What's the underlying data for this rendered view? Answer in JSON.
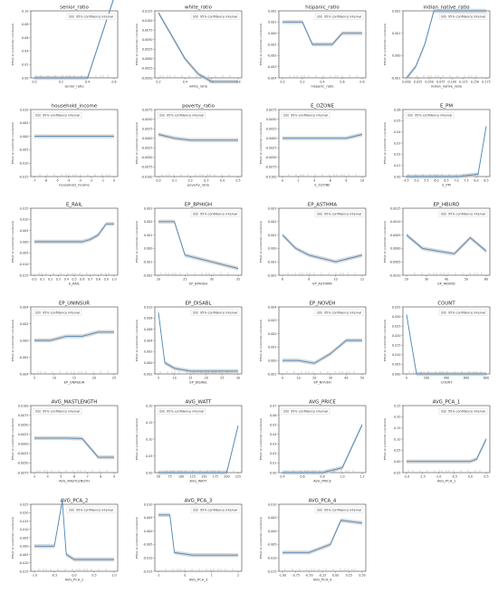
{
  "figure": {
    "legend_label": "95% confidence interval",
    "y_axis_label": "Effect on prediction (centered)"
  },
  "chart_data": [
    {
      "type": "line",
      "title": "senior_ratio",
      "xlabel": "senior_ratio",
      "x": [
        0.0,
        0.2,
        0.4,
        0.6
      ],
      "y": [
        0.0,
        0.0,
        0.0,
        0.12
      ],
      "xticks": [
        "0.0",
        "0.2",
        "0.4",
        "0.6"
      ],
      "yticks": [
        "0.00",
        "0.02",
        "0.04",
        "0.06",
        "0.08",
        "0.10"
      ],
      "legend": "top-right"
    },
    {
      "type": "line",
      "title": "white_ratio",
      "xlabel": "white_ratio",
      "x": [
        0.2,
        0.3,
        0.4,
        0.5,
        0.6,
        0.8
      ],
      "y": [
        0.012,
        0.006,
        0.0,
        -0.004,
        -0.006,
        -0.006
      ],
      "xticks": [
        "0.2",
        "0.4",
        "0.6",
        "0.8"
      ],
      "yticks": [
        "-0.0050",
        "-0.0025",
        "0.0000",
        "0.0025",
        "0.0050",
        "0.0075",
        "0.0100",
        "0.0125"
      ],
      "legend": "top-right"
    },
    {
      "type": "line",
      "title": "hispanic_ratio",
      "xlabel": "hispanic_ratio",
      "x": [
        0.0,
        0.2,
        0.3,
        0.5,
        0.6,
        0.8
      ],
      "y": [
        0.001,
        0.001,
        -0.001,
        -0.001,
        0.0,
        0.0
      ],
      "xticks": [
        "0.0",
        "0.2",
        "0.4",
        "0.6",
        "0.8"
      ],
      "yticks": [
        "-0.004",
        "-0.003",
        "-0.002",
        "-0.001",
        "0.000",
        "0.001",
        "0.002"
      ],
      "legend": "top-right"
    },
    {
      "type": "line",
      "title": "indian_native_ratio",
      "xlabel": "indian_native_ratio",
      "x": [
        0.0,
        0.02,
        0.04,
        0.06,
        0.1,
        0.175
      ],
      "y": [
        -0.001,
        -0.0005,
        0.0005,
        0.002,
        0.002,
        0.002
      ],
      "xticks": [
        "0.000",
        "0.025",
        "0.050",
        "0.075",
        "0.100",
        "0.125",
        "0.150",
        "0.175"
      ],
      "yticks": [
        "-0.001",
        "0.000",
        "0.001",
        "0.002"
      ],
      "legend": "top-right"
    },
    {
      "type": "line",
      "title": "household_income",
      "xlabel": "household_income",
      "x": [
        -7,
        -4,
        -2,
        -0.2
      ],
      "y": [
        0.0,
        0.0,
        0.0,
        0.0
      ],
      "xticks": [
        "-7",
        "-6",
        "-5",
        "-4",
        "-3",
        "-2",
        "-1",
        "0"
      ],
      "yticks": [
        "-0.015",
        "-0.010",
        "-0.005",
        "0.000",
        "0.005",
        "0.010"
      ],
      "legend": "top-left"
    },
    {
      "type": "line",
      "title": "poverty_ratio",
      "xlabel": "poverty_ratio",
      "x": [
        0.0,
        0.1,
        0.2,
        0.5
      ],
      "y": [
        0.001,
        0.0,
        -0.0005,
        -0.0005
      ],
      "xticks": [
        "0.0",
        "0.1",
        "0.2",
        "0.3",
        "0.4",
        "0.5"
      ],
      "yticks": [
        "-0.0100",
        "-0.0075",
        "-0.0050",
        "-0.0025",
        "0.0000",
        "0.0025",
        "0.0050",
        "0.0075"
      ],
      "legend": "top-left"
    },
    {
      "type": "line",
      "title": "E_OZONE",
      "xlabel": "E_OZONE",
      "x": [
        0,
        6,
        8,
        10
      ],
      "y": [
        0.0,
        0.0,
        0.0,
        0.001
      ],
      "xticks": [
        "0",
        "2",
        "4",
        "6",
        "8",
        "10"
      ],
      "yticks": [
        "-0.0100",
        "-0.0075",
        "-0.0050",
        "-0.0025",
        "0.0000",
        "0.0025",
        "0.0050",
        "0.0075"
      ],
      "legend": "top-left"
    },
    {
      "type": "line",
      "title": "E_PM",
      "xlabel": "E_PM",
      "x": [
        4.5,
        6.0,
        7.0,
        8.0,
        8.4
      ],
      "y": [
        0.0,
        0.0,
        0.0,
        0.002,
        0.045
      ],
      "xticks": [
        "4.5",
        "5.0",
        "5.5",
        "6.0",
        "6.5",
        "7.0",
        "7.5",
        "8.0",
        "8.5"
      ],
      "yticks": [
        "0.00",
        "0.01",
        "0.02",
        "0.03",
        "0.04",
        "0.05",
        "0.06"
      ],
      "legend": "top-left"
    },
    {
      "type": "line",
      "title": "E_RAIL",
      "xlabel": "E_RAIL",
      "categories": [
        "0.0",
        "0.1",
        "0.2",
        "0.3",
        "0.4",
        "0.5",
        "0.6",
        "0.7",
        "0.8",
        "0.9",
        "1.0"
      ],
      "x": [
        0,
        1,
        2,
        3,
        4,
        5,
        6,
        7,
        8,
        9,
        10
      ],
      "y": [
        0.0,
        0.0,
        0.0,
        0.0,
        0.0,
        0.0,
        0.0,
        0.001,
        0.003,
        0.008,
        0.008
      ],
      "yticks": [
        "-0.015",
        "-0.010",
        "-0.005",
        "0.000",
        "0.005",
        "0.010",
        "0.015"
      ],
      "legend": "none"
    },
    {
      "type": "line",
      "title": "EP_BPHIGH",
      "xlabel": "EP_BPHIGH",
      "x": [
        20,
        23,
        25,
        30,
        35
      ],
      "y": [
        0.002,
        0.002,
        -0.0005,
        -0.001,
        -0.0015
      ],
      "xticks": [
        "20",
        "25",
        "30",
        "35"
      ],
      "yticks": [
        "-0.002",
        "-0.001",
        "0.000",
        "0.001",
        "0.002",
        "0.003"
      ],
      "legend": "top-right"
    },
    {
      "type": "line",
      "title": "EP_ASTHMA",
      "xlabel": "EP_ASTHMA",
      "x": [
        6,
        7,
        8,
        10,
        12
      ],
      "y": [
        0.001,
        0.0,
        -0.0005,
        -0.001,
        -0.0005
      ],
      "xticks": [
        "6",
        "8",
        "10",
        "12"
      ],
      "yticks": [
        "-0.002",
        "-0.001",
        "0.000",
        "0.001",
        "0.002",
        "0.003"
      ],
      "legend": "top-right"
    },
    {
      "type": "line",
      "title": "EP_HBURD",
      "xlabel": "EP_HBURD",
      "x": [
        10,
        20,
        30,
        40,
        50,
        60
      ],
      "y": [
        0.0005,
        0.0,
        -0.0001,
        -0.0002,
        0.0004,
        -0.0001
      ],
      "xticks": [
        "20",
        "30",
        "40",
        "50",
        "60"
      ],
      "yticks": [
        "-0.0010",
        "-0.0005",
        "0.0000",
        "0.0005",
        "0.0010",
        "0.0015"
      ],
      "legend": "top-right"
    },
    {
      "type": "line",
      "title": "EP_UNINSUR",
      "xlabel": "EP_UNINSUR",
      "x": [
        0,
        5,
        10,
        15,
        20,
        25
      ],
      "y": [
        0.0,
        0.0,
        0.0005,
        0.0005,
        0.001,
        0.001
      ],
      "xticks": [
        "5",
        "10",
        "15",
        "20",
        "25"
      ],
      "yticks": [
        "-0.004",
        "-0.002",
        "0.000",
        "0.002",
        "0.004"
      ],
      "legend": "top-left"
    },
    {
      "type": "line",
      "title": "EP_DISABL",
      "xlabel": "EP_DISABL",
      "x": [
        5,
        7,
        10,
        15,
        20,
        30
      ],
      "y": [
        0.009,
        0.0,
        -0.001,
        -0.0015,
        -0.0015,
        -0.0015
      ],
      "xticks": [
        "5",
        "10",
        "15",
        "20",
        "25",
        "30"
      ],
      "yticks": [
        "-0.002",
        "0.000",
        "0.002",
        "0.004",
        "0.006",
        "0.008",
        "0.010"
      ],
      "legend": "top-right"
    },
    {
      "type": "line",
      "title": "EP_NOVEH",
      "xlabel": "EP_NOVEH",
      "x": [
        0,
        10,
        20,
        30,
        40,
        50
      ],
      "y": [
        0.0,
        0.0,
        -0.0002,
        0.0005,
        0.0015,
        0.0015
      ],
      "xticks": [
        "0",
        "10",
        "20",
        "30",
        "40",
        "50"
      ],
      "yticks": [
        "-0.001",
        "0.000",
        "0.001",
        "0.002",
        "0.003",
        "0.004"
      ],
      "legend": "top-right"
    },
    {
      "type": "line",
      "title": "COUNT",
      "xlabel": "COUNT",
      "x": [
        0,
        100,
        200,
        300,
        600,
        800
      ],
      "y": [
        0.031,
        0.0,
        0.0,
        0.0,
        0.0,
        0.0
      ],
      "xticks": [
        "0",
        "200",
        "400",
        "600",
        "800"
      ],
      "yticks": [
        "0.000",
        "0.005",
        "0.010",
        "0.015",
        "0.020",
        "0.025",
        "0.030",
        "0.035"
      ],
      "legend": "top-right"
    },
    {
      "type": "line",
      "title": "AVG_MASTLENGTH",
      "xlabel": "AVG_MASTLENGTH",
      "x": [
        3,
        4,
        5,
        6,
        7,
        8
      ],
      "y": [
        0.0015,
        0.0015,
        0.0015,
        0.0014,
        -0.0035,
        -0.0035
      ],
      "xticks": [
        "3",
        "4",
        "5",
        "6",
        "7",
        "8",
        "9"
      ],
      "yticks": [
        "-0.0075",
        "-0.0050",
        "-0.0025",
        "0.0000",
        "0.0025",
        "0.0050",
        "0.0075",
        "0.0100"
      ],
      "legend": "top-left"
    },
    {
      "type": "line",
      "title": "AVG_WATT",
      "xlabel": "AVG_WATT",
      "x": [
        50,
        100,
        150,
        200,
        225
      ],
      "y": [
        0.0,
        0.0,
        0.0,
        0.0,
        0.14
      ],
      "xticks": [
        "50",
        "75",
        "100",
        "125",
        "150",
        "175",
        "200",
        "225"
      ],
      "yticks": [
        "0.00",
        "0.05",
        "0.10",
        "0.15",
        "0.20"
      ],
      "legend": "top-left"
    },
    {
      "type": "line",
      "title": "AVG_PRICE",
      "xlabel": "AVG_PRICE",
      "x": [
        0.4,
        0.6,
        0.8,
        1.0,
        1.2
      ],
      "y": [
        0.0,
        0.0,
        0.0,
        0.005,
        0.05
      ],
      "xticks": [
        "0.4",
        "0.6",
        "0.8",
        "1.0",
        "1.2"
      ],
      "yticks": [
        "0.00",
        "0.01",
        "0.02",
        "0.03",
        "0.04",
        "0.05",
        "0.06",
        "0.07"
      ],
      "legend": "top-left"
    },
    {
      "type": "line",
      "title": "AVG_PCA_1",
      "xlabel": "AVG_PCA_1",
      "x": [
        -2.0,
        -1.0,
        0.0,
        0.2,
        0.5
      ],
      "y": [
        0.0,
        0.0,
        0.0,
        0.01,
        0.1
      ],
      "xticks": [
        "-2.0",
        "-1.5",
        "-1.0",
        "-0.5",
        "0.0",
        "0.5"
      ],
      "yticks": [
        "-0.05",
        "0.00",
        "0.05",
        "0.10",
        "0.15",
        "0.20",
        "0.25"
      ],
      "legend": "top-right"
    },
    {
      "type": "line",
      "title": "AVG_PCA_2",
      "xlabel": "AVG_PCA_2",
      "x": [
        -1.0,
        -0.5,
        -0.3,
        -0.2,
        0.0,
        1.0
      ],
      "y": [
        0.0,
        0.0,
        0.027,
        -0.005,
        -0.008,
        -0.008
      ],
      "xticks": [
        "-1.0",
        "-0.5",
        "0.0",
        "0.5",
        "1.0"
      ],
      "yticks": [
        "-0.015",
        "-0.010",
        "-0.005",
        "0.000",
        "0.005",
        "0.010",
        "0.015",
        "0.020",
        "0.025"
      ],
      "legend": "top-right"
    },
    {
      "type": "line",
      "title": "AVG_PCA_3",
      "xlabel": "AVG_PCA_3",
      "x": [
        -1.5,
        -1.0,
        -0.8,
        0.0,
        1.0,
        2.0
      ],
      "y": [
        0.006,
        0.006,
        -0.008,
        -0.009,
        -0.009,
        -0.009
      ],
      "xticks": [
        "-1",
        "0",
        "1",
        "2"
      ],
      "yticks": [
        "-0.015",
        "-0.010",
        "-0.005",
        "0.000",
        "0.005",
        "0.010"
      ],
      "legend": "top-right"
    },
    {
      "type": "line",
      "title": "AVG_PCA_4",
      "xlabel": "AVG_PCA_4",
      "x": [
        -1.0,
        -0.5,
        -0.1,
        0.1,
        0.5
      ],
      "y": [
        -0.008,
        -0.008,
        -0.005,
        0.004,
        0.003
      ],
      "xticks": [
        "-1.00",
        "-0.75",
        "-0.50",
        "-0.25",
        "0.00",
        "0.25",
        "0.50"
      ],
      "yticks": [
        "-0.015",
        "-0.010",
        "-0.005",
        "0.000",
        "0.005",
        "0.010"
      ],
      "legend": "top-right"
    }
  ]
}
